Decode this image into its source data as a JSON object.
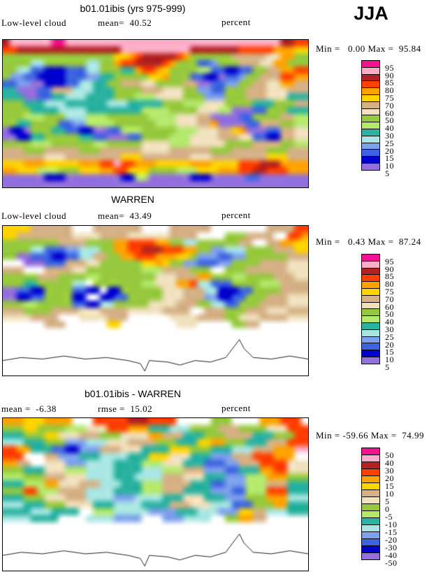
{
  "header": {
    "season": "JJA"
  },
  "chart_data": {
    "type": "heatmap",
    "description": "Three filled-contour global maps of low-level cloud amount (JJA): model b01.01ibis, WARREN observations, and their difference. 16-step discrete color scale, units percent. Grids below are coarse 44x22 run-length encodings (char:count) of the contour-fill color field; '.' means missing/white.",
    "palette": {
      "0": "#9370DB",
      "1": "#0000CD",
      "2": "#3D64DF",
      "3": "#7DA1EC",
      "4": "#A9E6E2",
      "5": "#2BB2A0",
      "6": "#B5E96E",
      "7": "#97C93F",
      "8": "#F0E1BD",
      "9": "#D5B185",
      "A": "#FFD400",
      "B": "#FFA200",
      "C": "#FF4000",
      "D": "#B22222",
      "E": "#FCAEC6",
      "F": "#F2138E",
      ".": "#FFFFFF"
    },
    "bar_order": [
      "F",
      "E",
      "D",
      "C",
      "B",
      "A",
      "9",
      "8",
      "7",
      "6",
      "5",
      "4",
      "3",
      "2",
      "1",
      "0"
    ],
    "coastline": [
      [
        0.0,
        0.9
      ],
      [
        0.06,
        0.88
      ],
      [
        0.13,
        0.89
      ],
      [
        0.2,
        0.87
      ],
      [
        0.27,
        0.89
      ],
      [
        0.34,
        0.88
      ],
      [
        0.41,
        0.9
      ],
      [
        0.45,
        0.92
      ],
      [
        0.465,
        0.97
      ],
      [
        0.48,
        0.9
      ],
      [
        0.54,
        0.91
      ],
      [
        0.58,
        0.93
      ],
      [
        0.63,
        0.9
      ],
      [
        0.68,
        0.91
      ],
      [
        0.73,
        0.88
      ],
      [
        0.775,
        0.76
      ],
      [
        0.79,
        0.82
      ],
      [
        0.82,
        0.88
      ],
      [
        0.88,
        0.89
      ],
      [
        0.94,
        0.87
      ],
      [
        1.0,
        0.89
      ]
    ],
    "panels": [
      {
        "id": "model",
        "title": "b01.01ibis (yrs 975-999)",
        "label_left": "Low-level cloud",
        "label_mid": "mean=  40.52",
        "unit": "percent",
        "minmax": "Min =   0.00 Max =  95.84",
        "stats": {
          "mean": 40.52,
          "min": 0.0,
          "max": 95.84
        },
        "levels": [
          5,
          10,
          15,
          20,
          25,
          30,
          40,
          50,
          60,
          70,
          75,
          80,
          85,
          90,
          95
        ],
        "bar_labels": [
          "95",
          "90",
          "85",
          "80",
          "75",
          "70",
          "60",
          "50",
          "40",
          "30",
          "25",
          "20",
          "15",
          "10",
          "5"
        ],
        "coast": false,
        "grid": [
          "D:1 E:6 F:2 E:31 D:2 C:2",
          "C:2 D:15 E:10 D:7 C:5 B:3 A:2",
          "7:16 A:2 B:1 C:1 D:5 C:1 B:1 7:6 9:5 8:2 B:2 7:2",
          "7:4 4:2 7:6 4:2 7:2 B:1 C:2 D:4 C:1 B:1 7:3 2:2 3:1 7:3 9:3 8:2 B:2 7:3",
          "7:2 4:2 2:2 1:3 2:3 4:2 7:3 5:2 B:1 C:2 B:1 A:1 7:4 6:2 2:2 1:2 2:2 7:2 9:2 B:2 C:2",
          "7:1 3:2 2:2 1:4 2:3 3:2 5:2 7:5 A:2 B:1 7:3 2:2 1:2 0:1 2:2 3:1 7:2 9:3 C:2 B:2",
          "2:2 3:2 0:2 1:3 2:2 4:2 5:2 7:2 9:3 8:2 7:4 9:2 0:2 2:2 3:2 7:2 9:2 8:2 B:2 9:2",
          "5:2 0:3 2:2 9:3 4:3 5:3 7:4 9:3 8:3 7:2 3:2 2:2 7:3 9:3 8:3 9:3",
          "5:3 0:2 2:2 5:2 4:3 5:4 7:3 6:3 8:4 7:3 3:3 7:3 9:3 8:3 5:3",
          "7:3 5:3 4:3 5:6 4:3 5:5 7:3 6:3 8:3 7:4 5:3 7:3 9:2",
          "7:4 5:4 4:4 5:8 6:4 7:4 8:3 6:2 0:3 2:2 7:3 5:3",
          "7:3 6:3 7:3 4:3 6:3 7:6 6:4 8:3 9:2 0:4 2:2 7:4 9:2 6:2",
          "7:2 5:2 7:4 2:2 3:2 6:4 7:6 6:3 8:3 9:2 B:1 0:4 2:2 9:3 7:2 6:2",
          "0:1 1:2 0:1 7:3 5:2 2:2 1:2 0:2 2:2 6:3 7:5 6:3 8:3 9:2 A:1 B:1 0:3 2:2 9:2 8:2",
          "0:2 1:2 5:2 7:5 5:2 2:2 0:3 2:2 7:4 6:3 8:4 9:3 8:2 2:2 1:2 9:2 8:2",
          "7:4 6:3 7:6 6:2 7:5 8:4 6:3 8:5 7:4 9:4 7:2 6:2",
          "9:3 7:3 9:5 7:3 9:6 8:4 9:6 7:3 9:5 7:3 9:3",
          "9:6 8:3 9:8 A:3 9:7 8:3 9:8 A:3 9:3",
          "A:3 B:3 A:5 B:3 C:2 E:1 C:2 B:3 A:5 B:3 A:4 C:3 D:3 B:4",
          "B:2 A:3 6:3 7:3 A:3 B:2 C:2 A:3 7:4 6:3 A:3 B:3 C:2 D:2 C:3 B:3",
          "0:6 1:3 0:8 1:2 6:2 0:6 1:3 0:5 2:2 0:7",
          "0:44"
        ]
      },
      {
        "id": "obs",
        "title": "WARREN",
        "label_left": "Low-level cloud",
        "label_mid": "mean=  43.49",
        "unit": "percent",
        "minmax": "Min =   0.43 Max =  87.24",
        "stats": {
          "mean": 43.49,
          "min": 0.43,
          "max": 87.24
        },
        "levels": [
          5,
          10,
          15,
          20,
          25,
          30,
          40,
          50,
          60,
          70,
          75,
          80,
          85,
          90,
          95
        ],
        "bar_labels": [
          "95",
          "90",
          "85",
          "80",
          "75",
          "70",
          "60",
          "50",
          "40",
          "30",
          "25",
          "20",
          "15",
          "10",
          "5"
        ],
        "coast": true,
        "grid": [
          "A:4 9:6 .:3 9:7 .:4 9:6 .:8 9:4 C:2",
          "A:2 9:8 8:4 9:4 8:6 9:4 .:4 7:3 9:4 .:2 C:2 B:1",
          "7:8 9:4 7:4 B:2 C:4 B:2 7:2 4:2 7:6 9:2 .:2 9:2 B:2 A:2",
          "7:4 4:2 2:3 3:2 4:3 7:2 B:2 C:2 D:3 C:3 B:2 7:2 3:2 4:3 7:4 9:3 A:2",
          "7:2 0:2 2:3 1:2 2:2 4:2 9:2 7:2 B:2 C:3 B:3 A:2 7:1 3:3 2:2 3:2 7:6 9:3 8:2",
          ".:3 0:3 2:3 9:3 8:2 7:6 A:2 B:1 A:1 7:2 3:2 2:3 3:2 7:4 9:4 8:3",
          "9:3 .:3 9:4 8:2 7:8 6:3 9:4 7:3 .:2 7:3 9:6 8:3",
          "7:5 9:3 7:4 6:2 7:8 8:3 9:3 B:2 7:3 6:2 7:4 9:3 8:2",
          "7:3 5:2 7:5 4:2 .:1 7:7 6:2 8:3 B:2 C:1 4:2 2:3 7:4 6:3 9:4",
          "0:2 2:2 1:2 7:4 2:2 1:2 .:1 1:2 7:6 8:3 9:3 4:2 1:3 2:2 7:4 9:4",
          "0:2 1:2 2:2 7:4 1:2 .:2 1:2 2:2 7:5 8:3 9:3 3:2 1:2 2:2 7:3 9:3 8:3",
          "7:3 6:2 7:5 2:2 1:2 4:2 7:5 8:4 9:3 7:2 4:2 2:2 7:3 9:4 8:3",
          "9:3 7:4 9:4 8:3 9:4 8:5 9:4 .:2 9:3 7:3 9:3 8:3 9:3",
          "8:4 9:4 .:3 8:4 9:3 .:6 8:4 9:4 7:2 8:3 9:4 8:3",
          ".:6 9:3 .:6 A:2 .:8 8:3 .:5 7:2 9:2 .:7",
          ".:44",
          ".:44",
          ".:44",
          ".:44",
          ".:44",
          ".:44",
          ".:44"
        ]
      },
      {
        "id": "diff",
        "title": "b01.01ibis - WARREN",
        "label_left": "mean =  -6.38",
        "label_mid": "rmse =  15.02",
        "unit": "percent",
        "minmax": "Min = -59.66 Max =  74.99",
        "stats": {
          "mean": -6.38,
          "rmse": 15.02,
          "min": -59.66,
          "max": 74.99
        },
        "levels": [
          -50,
          -40,
          -30,
          -20,
          -15,
          -10,
          -5,
          0,
          5,
          10,
          15,
          20,
          30,
          40,
          50
        ],
        "bar_labels": [
          "50",
          "40",
          "30",
          "20",
          "15",
          "10",
          "5",
          "0",
          "-5",
          "-10",
          "-15",
          "-20",
          "-30",
          "-40",
          "-50"
        ],
        "coast": true,
        "grid": [
          "B:3 A:3 B:4 .:3 C:5 D:3 C:4 .:5 7:3 .:4 B:3 C:3 .:1",
          "7:3 A:2 7:4 6:3 8:3 C:3 B:3 5:3 4:3 7:4 9:3 7:4 8:3 C:3",
          "5:3 7:3 A:2 8:3 9:3 7:3 8:4 B:2 9:3 5:3 7:3 9:4 5:3 7:3 C:2",
          "4:3 5:3 7:3 3:3 4:3 8:3 9:4 7:3 5:3 A:2 B:2 7:3 5:3 9:3 C:3",
          "C:2 B:2 5:3 2:2 1:2 3:3 9:3 8:3 5:4 A:3 7:3 5:3 4:3 9:3 B:3 E:2",
          "C:3 .:3 9:2 3:3 5:3 4:4 5:3 A:3 8:3 5:3 3:3 9:3 C:3 B:3 .:2",
          "B:2 9:2 .:2 8:3 3:3 4:4 5:4 6:3 8:3 5:3 2:3 3:2 9:3 C:4 8:3",
          "7:3 5:3 8:3 6:3 4:4 5:4 4:3 6:3 9:3 3:3 2:2 5:3 B:2 C:2 8:3",
          "6:3 7:3 9:3 8:3 4:4 5:3 4:4 9:3 8:3 5:3 3:3 6:3 B:3 7:3",
          "5:3 6:3 B:2 8:3 9:3 4:3 5:3 6:3 9:4 5:3 2:2 3:3 6:3 9:3 5:3",
          "7:3 C:2 6:3 9:4 4:4 5:4 6:3 9:3 5:4 3:3 2:2 6:3 C:3 5:3",
          "5:3 7:3 8:3 9:3 4:4 3:3 4:4 5:3 8:3 5:3 3:3 7:3 B:3 4:3",
          "4:3 5:3 7:3 8:4 5:3 4:4 5:4 9:3 8:3 4:3 2:3 7:3 B:2 5:3",
          "5:4 4:3 5:4 .:2 6:3 4:5 3:4 5:3 4:3 3:3 A:2 9:2 4:3 5:3",
          "4:4 5:4 .:4 4:4 3:4 .:3 3:3 4:4 .:2 7:2 B:2 9:2 .:6",
          ".:44",
          ".:44",
          ".:44",
          ".:44",
          ".:44",
          ".:44",
          ".:44"
        ]
      }
    ]
  }
}
